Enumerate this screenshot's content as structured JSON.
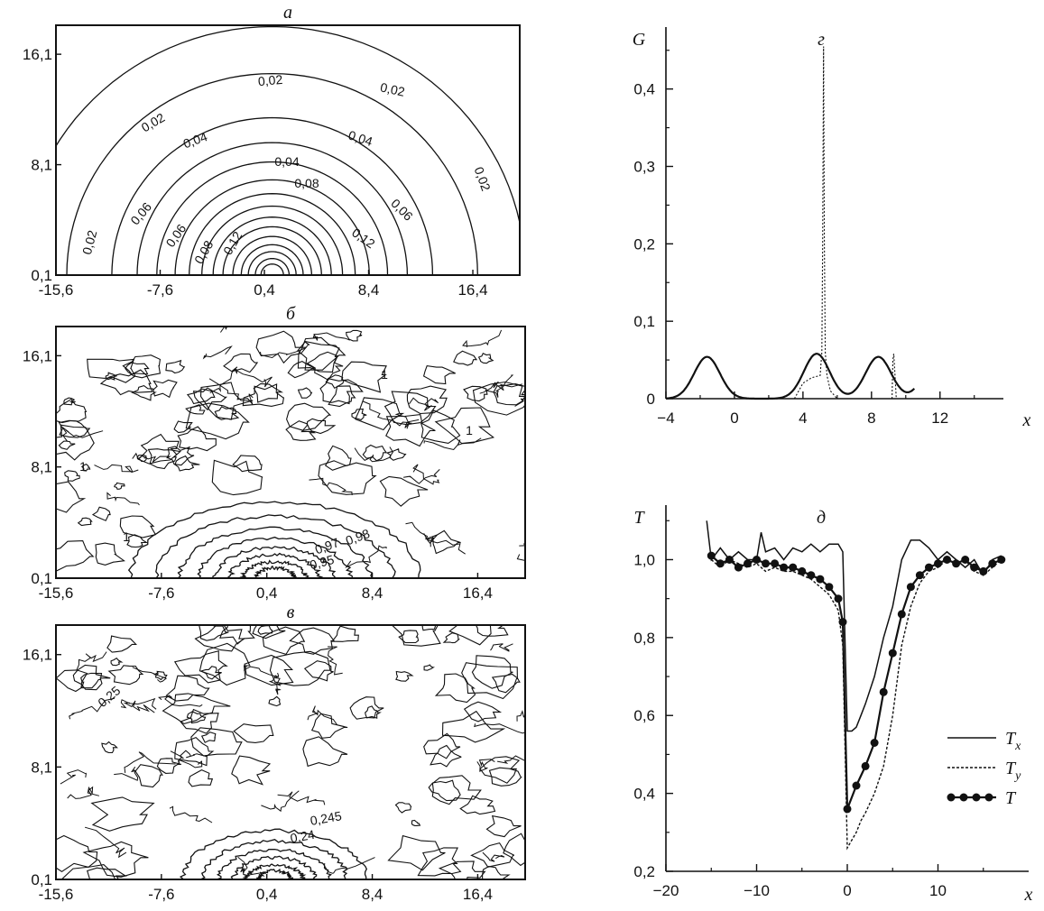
{
  "chart_data": [
    {
      "panel": "a",
      "type": "contour",
      "title": "a",
      "x_ticks": [
        "-15,6",
        "-7,6",
        "0,4",
        "8,4",
        "16,4"
      ],
      "y_ticks": [
        "0,1",
        "8,1",
        "16,1"
      ],
      "x_range": [
        -15.6,
        20.0
      ],
      "y_range": [
        0.1,
        18.2
      ],
      "center": [
        1.0,
        0.1
      ],
      "levels": [
        {
          "r": 18.0,
          "label": "0,02"
        },
        {
          "r": 14.6,
          "label": "0,02"
        },
        {
          "r": 11.4,
          "label": "0,04"
        },
        {
          "r": 9.6,
          "label": "0,06"
        },
        {
          "r": 8.2,
          "label": "0,08"
        },
        {
          "r": 6.9,
          "label": "0,12"
        },
        {
          "r": 5.9,
          "label": ""
        },
        {
          "r": 5.0,
          "label": ""
        },
        {
          "r": 4.2,
          "label": ""
        },
        {
          "r": 3.5,
          "label": ""
        },
        {
          "r": 2.8,
          "label": ""
        },
        {
          "r": 2.2,
          "label": ""
        },
        {
          "r": 1.7,
          "label": ""
        },
        {
          "r": 1.2,
          "label": ""
        },
        {
          "r": 0.8,
          "label": ""
        }
      ],
      "labels_shown": [
        "0,02",
        "0,02",
        "0,02",
        "0,02",
        "0,02",
        "0,04",
        "0,04",
        "0,04",
        "0,06",
        "0,06",
        "0,06",
        "0,08",
        "0,08",
        "0,12",
        "0,12"
      ]
    },
    {
      "panel": "б",
      "type": "contour",
      "title": "б",
      "x_ticks": [
        "-15,6",
        "-7,6",
        "0,4",
        "8,4",
        "16,4"
      ],
      "y_ticks": [
        "0,1",
        "8,1",
        "16,1"
      ],
      "x_range": [
        -15.6,
        20.0
      ],
      "y_range": [
        0.1,
        18.2
      ],
      "center": [
        1.0,
        0.1
      ],
      "levels": [
        {
          "r": 8.8,
          "label": "0,98"
        },
        {
          "r": 7.2,
          "label": "0,97"
        },
        {
          "r": 5.8,
          "label": "0,95"
        },
        {
          "r": 4.6,
          "label": ""
        },
        {
          "r": 3.6,
          "label": ""
        },
        {
          "r": 2.7,
          "label": ""
        },
        {
          "r": 1.9,
          "label": ""
        },
        {
          "r": 1.2,
          "label": ""
        }
      ],
      "annotations": [
        "1",
        "1",
        "1",
        "1"
      ]
    },
    {
      "panel": "в",
      "type": "contour",
      "title": "в",
      "x_ticks": [
        "-15,6",
        "-7,6",
        "0,4",
        "8,4",
        "16,4"
      ],
      "y_ticks": [
        "0,1",
        "8,1",
        "16,1"
      ],
      "x_range": [
        -15.6,
        20.0
      ],
      "y_range": [
        0.1,
        18.2
      ],
      "center": [
        1.0,
        0.1
      ],
      "levels": [
        {
          "r": 5.6,
          "label": "0,245"
        },
        {
          "r": 4.4,
          "label": "0,24"
        },
        {
          "r": 3.4,
          "label": ""
        },
        {
          "r": 2.5,
          "label": ""
        },
        {
          "r": 1.7,
          "label": ""
        },
        {
          "r": 1.0,
          "label": ""
        }
      ],
      "annotations": [
        "0,25"
      ]
    },
    {
      "panel": "г",
      "type": "line",
      "title": "г",
      "xlabel": "x",
      "ylabel": "G",
      "x_ticks": [
        -4,
        0,
        4,
        8,
        12
      ],
      "y_ticks": [
        0,
        0.1,
        0.2,
        0.3,
        0.4
      ],
      "y_tick_labels": [
        "0",
        "0,1",
        "0,2",
        "0,3",
        "0,4"
      ],
      "xlim": [
        -4,
        15.7
      ],
      "ylim": [
        0,
        0.48
      ],
      "series": [
        {
          "style": "solid",
          "peaks": [
            [
              -1.6,
              0.054
            ],
            [
              4.8,
              0.058
            ],
            [
              8.4,
              0.054
            ],
            [
              11.8,
              0.054
            ]
          ],
          "sigma": 0.75
        },
        {
          "style": "dotted",
          "x": [
            3.5,
            4.0,
            4.5,
            5.0,
            5.1,
            5.15,
            5.2,
            5.25,
            5.3,
            5.4,
            5.6,
            6.0,
            9.2,
            9.25,
            9.3,
            9.35,
            9.45
          ],
          "y": [
            0.0,
            0.02,
            0.027,
            0.03,
            0.06,
            0.2,
            0.455,
            0.2,
            0.06,
            0.03,
            0.01,
            0.0,
            0.0,
            0.05,
            0.058,
            0.04,
            0.0
          ]
        }
      ]
    },
    {
      "panel": "д",
      "type": "line",
      "title": "д",
      "xlabel": "x",
      "ylabel": "T",
      "x_ticks": [
        -20,
        -10,
        0,
        10
      ],
      "y_ticks": [
        0.2,
        0.4,
        0.6,
        0.8,
        1.0
      ],
      "y_tick_labels": [
        "0,2",
        "0,4",
        "0,6",
        "0,8",
        "1,0"
      ],
      "xlim": [
        -20,
        20
      ],
      "ylim": [
        0.2,
        1.14
      ],
      "legend_position": "right",
      "series": [
        {
          "name": "T_x",
          "legend_main": "T",
          "legend_sub": "x",
          "style": "solid",
          "x": [
            -15.5,
            -15,
            -14,
            -13,
            -12,
            -11,
            -10,
            -9.5,
            -9,
            -8,
            -7,
            -6,
            -5,
            -4,
            -3,
            -2,
            -1,
            -0.5,
            0,
            0.5,
            1,
            1.5,
            2,
            3,
            4,
            5,
            6,
            7,
            8,
            9,
            10,
            11,
            12,
            13,
            14,
            15,
            16,
            17
          ],
          "y": [
            1.1,
            1.0,
            1.03,
            1.0,
            1.02,
            1.0,
            1.0,
            1.07,
            1.02,
            1.03,
            1.0,
            1.03,
            1.02,
            1.04,
            1.02,
            1.04,
            1.04,
            1.02,
            0.56,
            0.56,
            0.57,
            0.6,
            0.63,
            0.7,
            0.8,
            0.88,
            1.0,
            1.05,
            1.05,
            1.03,
            1.0,
            1.02,
            1.0,
            0.98,
            1.0,
            0.96,
            1.0,
            1.01
          ]
        },
        {
          "name": "T_y",
          "legend_main": "T",
          "legend_sub": "y",
          "style": "dashed",
          "x": [
            -15,
            -14,
            -13,
            -12,
            -11,
            -10,
            -9,
            -8,
            -7,
            -6,
            -5,
            -4,
            -3,
            -2,
            -1,
            -0.5,
            0,
            0.5,
            1,
            1.5,
            2,
            3,
            4,
            5,
            6,
            7,
            8,
            9,
            10,
            11,
            12,
            13,
            14,
            15,
            16,
            17
          ],
          "y": [
            1.0,
            0.98,
            1.0,
            0.99,
            0.98,
            0.99,
            0.97,
            0.98,
            0.97,
            0.97,
            0.96,
            0.95,
            0.93,
            0.91,
            0.87,
            0.78,
            0.26,
            0.28,
            0.3,
            0.33,
            0.35,
            0.4,
            0.47,
            0.6,
            0.78,
            0.88,
            0.94,
            0.97,
            0.98,
            1.0,
            0.99,
            1.0,
            0.97,
            0.96,
            0.98,
            1.0
          ]
        },
        {
          "name": "T",
          "legend_main": "T",
          "legend_sub": "",
          "style": "markers",
          "x": [
            -15,
            -14,
            -13,
            -12,
            -11,
            -10,
            -9,
            -8,
            -7,
            -6,
            -5,
            -4,
            -3,
            -2,
            -1,
            -0.5,
            0,
            1,
            2,
            3,
            4,
            5,
            6,
            7,
            8,
            9,
            10,
            11,
            12,
            13,
            14,
            15,
            16,
            17
          ],
          "y": [
            1.01,
            0.99,
            1.0,
            0.98,
            0.99,
            1.0,
            0.99,
            0.99,
            0.98,
            0.98,
            0.97,
            0.96,
            0.95,
            0.93,
            0.9,
            0.84,
            0.36,
            0.42,
            0.47,
            0.53,
            0.66,
            0.76,
            0.86,
            0.93,
            0.96,
            0.98,
            0.99,
            1.0,
            0.99,
            1.0,
            0.98,
            0.97,
            0.99,
            1.0
          ]
        }
      ]
    }
  ]
}
